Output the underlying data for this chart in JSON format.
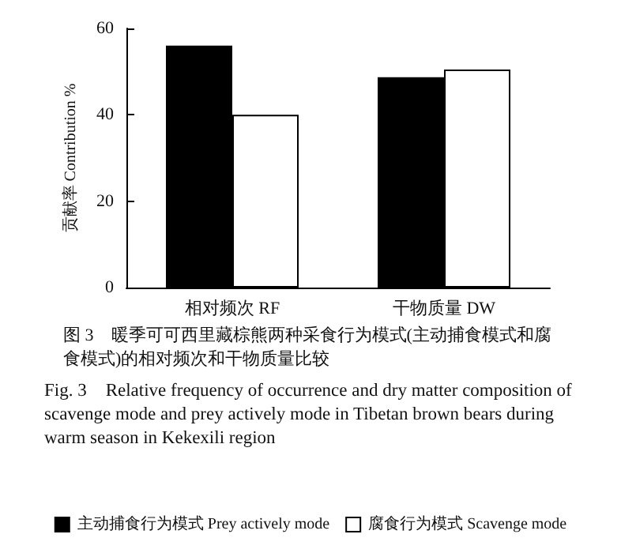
{
  "chart_data": {
    "type": "bar",
    "categories": [
      "相对频次 RF",
      "干物质量 DW"
    ],
    "series": [
      {
        "name": "主动捕食行为模式 Prey actively mode",
        "color": "#000000",
        "values": [
          56,
          48.7
        ]
      },
      {
        "name": "腐食行为模式 Scavenge mode",
        "color": "#ffffff",
        "values": [
          40,
          50.5
        ]
      }
    ],
    "ylabel": "贡献率 Contribution %",
    "ylim": [
      0,
      60
    ],
    "yticks": [
      0,
      20,
      40,
      60
    ],
    "grid": false,
    "legend": "bottom",
    "annotations": [
      "图 3　暖季可可西里藏棕熊两种采食行为模式(主动捕食模式和腐食模式)的相对频次和干物质量比较",
      "Fig. 3　Relative frequency of occurrence and dry matter composition of scavenge mode and prey actively mode in Tibetan brown bears during warm season in Kekexili region"
    ]
  }
}
